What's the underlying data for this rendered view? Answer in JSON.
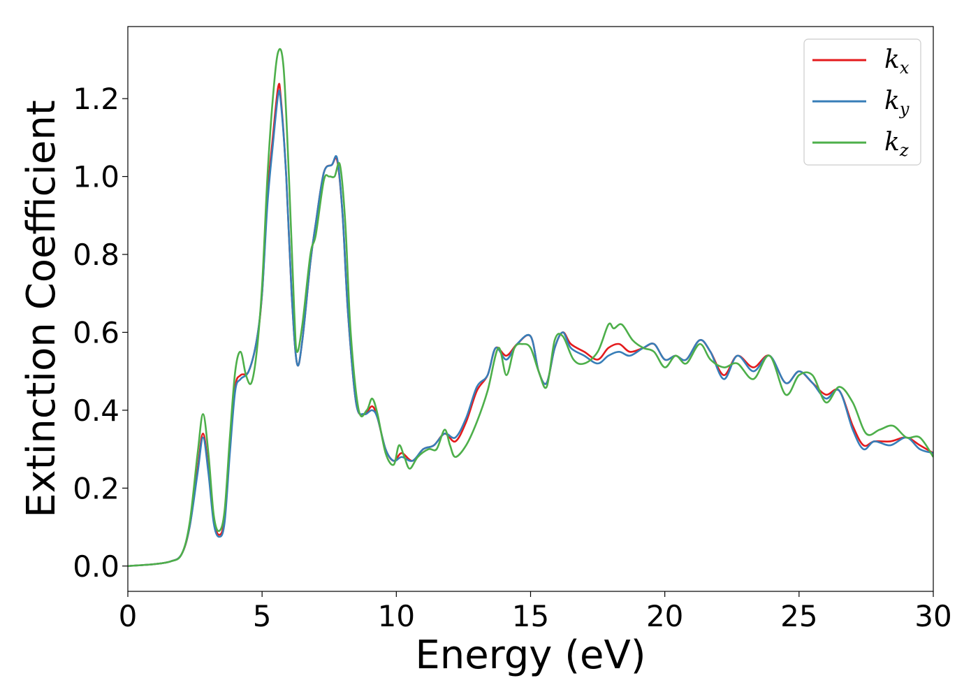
{
  "chart_data": {
    "type": "line",
    "xlabel": "Energy (eV)",
    "ylabel": "Extinction Coefficient",
    "xlim": [
      0,
      30
    ],
    "ylim": [
      -0.065,
      1.385
    ],
    "xticks": [
      0,
      5,
      10,
      15,
      20,
      25,
      30
    ],
    "xtick_labels": [
      "0",
      "5",
      "10",
      "15",
      "20",
      "25",
      "30"
    ],
    "yticks": [
      0.0,
      0.2,
      0.4,
      0.6,
      0.8,
      1.0,
      1.2
    ],
    "ytick_labels": [
      "0.0",
      "0.2",
      "0.4",
      "0.6",
      "0.8",
      "1.0",
      "1.2"
    ],
    "grid": false,
    "legend_position": "top-right",
    "series": [
      {
        "name": "k_x",
        "legend_base": "k",
        "legend_sub": "x",
        "color": "#e41a1c",
        "points": [
          [
            0,
            0
          ],
          [
            1,
            0.005
          ],
          [
            1.6,
            0.012
          ],
          [
            2,
            0.03
          ],
          [
            2.3,
            0.1
          ],
          [
            2.6,
            0.25
          ],
          [
            2.8,
            0.34
          ],
          [
            3.0,
            0.25
          ],
          [
            3.2,
            0.12
          ],
          [
            3.4,
            0.08
          ],
          [
            3.6,
            0.12
          ],
          [
            3.8,
            0.3
          ],
          [
            4.0,
            0.46
          ],
          [
            4.2,
            0.49
          ],
          [
            4.5,
            0.5
          ],
          [
            4.8,
            0.58
          ],
          [
            5.0,
            0.7
          ],
          [
            5.2,
            0.95
          ],
          [
            5.4,
            1.1
          ],
          [
            5.6,
            1.23
          ],
          [
            5.7,
            1.2
          ],
          [
            5.9,
            1.0
          ],
          [
            6.1,
            0.7
          ],
          [
            6.3,
            0.52
          ],
          [
            6.5,
            0.58
          ],
          [
            6.8,
            0.78
          ],
          [
            7.0,
            0.88
          ],
          [
            7.3,
            1.01
          ],
          [
            7.6,
            1.03
          ],
          [
            7.8,
            1.04
          ],
          [
            8.0,
            0.9
          ],
          [
            8.2,
            0.65
          ],
          [
            8.5,
            0.42
          ],
          [
            8.8,
            0.39
          ],
          [
            9.1,
            0.41
          ],
          [
            9.3,
            0.38
          ],
          [
            9.6,
            0.3
          ],
          [
            9.9,
            0.27
          ],
          [
            10.2,
            0.29
          ],
          [
            10.6,
            0.27
          ],
          [
            11.0,
            0.3
          ],
          [
            11.4,
            0.31
          ],
          [
            11.8,
            0.34
          ],
          [
            12.2,
            0.32
          ],
          [
            12.6,
            0.37
          ],
          [
            13.0,
            0.45
          ],
          [
            13.4,
            0.49
          ],
          [
            13.7,
            0.56
          ],
          [
            14.1,
            0.54
          ],
          [
            14.5,
            0.57
          ],
          [
            15.0,
            0.59
          ],
          [
            15.3,
            0.5
          ],
          [
            15.6,
            0.47
          ],
          [
            15.9,
            0.56
          ],
          [
            16.2,
            0.6
          ],
          [
            16.5,
            0.57
          ],
          [
            17.0,
            0.55
          ],
          [
            17.5,
            0.53
          ],
          [
            17.9,
            0.56
          ],
          [
            18.3,
            0.57
          ],
          [
            18.7,
            0.55
          ],
          [
            19.2,
            0.56
          ],
          [
            19.6,
            0.57
          ],
          [
            20.0,
            0.53
          ],
          [
            20.4,
            0.54
          ],
          [
            20.8,
            0.53
          ],
          [
            21.3,
            0.58
          ],
          [
            21.7,
            0.55
          ],
          [
            22.2,
            0.49
          ],
          [
            22.7,
            0.54
          ],
          [
            23.3,
            0.51
          ],
          [
            23.9,
            0.54
          ],
          [
            24.5,
            0.47
          ],
          [
            25.0,
            0.5
          ],
          [
            25.5,
            0.47
          ],
          [
            26.0,
            0.44
          ],
          [
            26.5,
            0.45
          ],
          [
            27.0,
            0.36
          ],
          [
            27.4,
            0.31
          ],
          [
            27.8,
            0.32
          ],
          [
            28.4,
            0.32
          ],
          [
            29.0,
            0.33
          ],
          [
            29.5,
            0.31
          ],
          [
            30.0,
            0.29
          ]
        ]
      },
      {
        "name": "k_y",
        "legend_base": "k",
        "legend_sub": "y",
        "color": "#377eb8",
        "points": [
          [
            0,
            0
          ],
          [
            1,
            0.005
          ],
          [
            1.6,
            0.012
          ],
          [
            2,
            0.03
          ],
          [
            2.3,
            0.1
          ],
          [
            2.6,
            0.24
          ],
          [
            2.8,
            0.33
          ],
          [
            3.0,
            0.24
          ],
          [
            3.2,
            0.11
          ],
          [
            3.4,
            0.075
          ],
          [
            3.6,
            0.11
          ],
          [
            3.8,
            0.29
          ],
          [
            4.0,
            0.45
          ],
          [
            4.2,
            0.48
          ],
          [
            4.5,
            0.5
          ],
          [
            4.8,
            0.58
          ],
          [
            5.0,
            0.7
          ],
          [
            5.2,
            0.93
          ],
          [
            5.4,
            1.08
          ],
          [
            5.6,
            1.21
          ],
          [
            5.7,
            1.19
          ],
          [
            5.9,
            1.0
          ],
          [
            6.1,
            0.7
          ],
          [
            6.3,
            0.52
          ],
          [
            6.5,
            0.58
          ],
          [
            6.8,
            0.78
          ],
          [
            7.0,
            0.88
          ],
          [
            7.3,
            1.01
          ],
          [
            7.6,
            1.03
          ],
          [
            7.8,
            1.045
          ],
          [
            8.0,
            0.9
          ],
          [
            8.2,
            0.65
          ],
          [
            8.5,
            0.42
          ],
          [
            8.8,
            0.39
          ],
          [
            9.1,
            0.4
          ],
          [
            9.3,
            0.38
          ],
          [
            9.6,
            0.3
          ],
          [
            9.9,
            0.27
          ],
          [
            10.2,
            0.28
          ],
          [
            10.6,
            0.27
          ],
          [
            11.0,
            0.3
          ],
          [
            11.4,
            0.31
          ],
          [
            11.8,
            0.34
          ],
          [
            12.2,
            0.33
          ],
          [
            12.6,
            0.38
          ],
          [
            13.0,
            0.46
          ],
          [
            13.4,
            0.49
          ],
          [
            13.7,
            0.56
          ],
          [
            14.1,
            0.53
          ],
          [
            14.5,
            0.57
          ],
          [
            15.0,
            0.59
          ],
          [
            15.3,
            0.5
          ],
          [
            15.6,
            0.47
          ],
          [
            15.9,
            0.56
          ],
          [
            16.2,
            0.6
          ],
          [
            16.5,
            0.56
          ],
          [
            17.0,
            0.54
          ],
          [
            17.5,
            0.52
          ],
          [
            17.9,
            0.54
          ],
          [
            18.3,
            0.55
          ],
          [
            18.7,
            0.54
          ],
          [
            19.2,
            0.56
          ],
          [
            19.6,
            0.57
          ],
          [
            20.0,
            0.53
          ],
          [
            20.4,
            0.54
          ],
          [
            20.8,
            0.53
          ],
          [
            21.3,
            0.58
          ],
          [
            21.7,
            0.55
          ],
          [
            22.2,
            0.48
          ],
          [
            22.7,
            0.54
          ],
          [
            23.3,
            0.5
          ],
          [
            23.9,
            0.54
          ],
          [
            24.5,
            0.47
          ],
          [
            25.0,
            0.5
          ],
          [
            25.5,
            0.47
          ],
          [
            26.0,
            0.43
          ],
          [
            26.5,
            0.45
          ],
          [
            27.0,
            0.35
          ],
          [
            27.4,
            0.3
          ],
          [
            27.8,
            0.32
          ],
          [
            28.4,
            0.31
          ],
          [
            29.0,
            0.33
          ],
          [
            29.5,
            0.3
          ],
          [
            30.0,
            0.29
          ]
        ]
      },
      {
        "name": "k_z",
        "legend_base": "k",
        "legend_sub": "z",
        "color": "#4daf4a",
        "points": [
          [
            0,
            0
          ],
          [
            1,
            0.005
          ],
          [
            1.6,
            0.012
          ],
          [
            2,
            0.03
          ],
          [
            2.3,
            0.11
          ],
          [
            2.6,
            0.29
          ],
          [
            2.8,
            0.39
          ],
          [
            3.0,
            0.29
          ],
          [
            3.2,
            0.13
          ],
          [
            3.4,
            0.09
          ],
          [
            3.6,
            0.14
          ],
          [
            3.8,
            0.33
          ],
          [
            4.0,
            0.5
          ],
          [
            4.2,
            0.55
          ],
          [
            4.4,
            0.49
          ],
          [
            4.6,
            0.47
          ],
          [
            4.8,
            0.55
          ],
          [
            5.0,
            0.72
          ],
          [
            5.2,
            1.0
          ],
          [
            5.4,
            1.2
          ],
          [
            5.6,
            1.32
          ],
          [
            5.8,
            1.28
          ],
          [
            6.0,
            1.0
          ],
          [
            6.2,
            0.65
          ],
          [
            6.3,
            0.55
          ],
          [
            6.5,
            0.62
          ],
          [
            6.8,
            0.8
          ],
          [
            7.0,
            0.85
          ],
          [
            7.3,
            0.99
          ],
          [
            7.5,
            1.0
          ],
          [
            7.7,
            1.0
          ],
          [
            7.9,
            1.03
          ],
          [
            8.1,
            0.88
          ],
          [
            8.3,
            0.6
          ],
          [
            8.6,
            0.4
          ],
          [
            8.9,
            0.4
          ],
          [
            9.1,
            0.43
          ],
          [
            9.3,
            0.39
          ],
          [
            9.6,
            0.29
          ],
          [
            9.9,
            0.26
          ],
          [
            10.1,
            0.31
          ],
          [
            10.3,
            0.28
          ],
          [
            10.5,
            0.25
          ],
          [
            10.8,
            0.28
          ],
          [
            11.2,
            0.3
          ],
          [
            11.5,
            0.3
          ],
          [
            11.8,
            0.35
          ],
          [
            12.0,
            0.31
          ],
          [
            12.2,
            0.28
          ],
          [
            12.6,
            0.31
          ],
          [
            13.0,
            0.37
          ],
          [
            13.4,
            0.45
          ],
          [
            13.8,
            0.56
          ],
          [
            14.1,
            0.49
          ],
          [
            14.4,
            0.56
          ],
          [
            14.7,
            0.57
          ],
          [
            15.0,
            0.56
          ],
          [
            15.3,
            0.5
          ],
          [
            15.6,
            0.46
          ],
          [
            15.9,
            0.58
          ],
          [
            16.2,
            0.59
          ],
          [
            16.6,
            0.53
          ],
          [
            17.0,
            0.52
          ],
          [
            17.5,
            0.55
          ],
          [
            17.9,
            0.62
          ],
          [
            18.1,
            0.61
          ],
          [
            18.4,
            0.62
          ],
          [
            18.8,
            0.58
          ],
          [
            19.2,
            0.56
          ],
          [
            19.6,
            0.55
          ],
          [
            20.0,
            0.51
          ],
          [
            20.4,
            0.54
          ],
          [
            20.8,
            0.52
          ],
          [
            21.3,
            0.57
          ],
          [
            21.7,
            0.53
          ],
          [
            22.2,
            0.51
          ],
          [
            22.7,
            0.52
          ],
          [
            23.3,
            0.48
          ],
          [
            23.9,
            0.54
          ],
          [
            24.5,
            0.44
          ],
          [
            25.0,
            0.49
          ],
          [
            25.5,
            0.49
          ],
          [
            26.0,
            0.42
          ],
          [
            26.5,
            0.46
          ],
          [
            27.0,
            0.42
          ],
          [
            27.5,
            0.34
          ],
          [
            28.0,
            0.35
          ],
          [
            28.5,
            0.36
          ],
          [
            29.0,
            0.33
          ],
          [
            29.5,
            0.33
          ],
          [
            30.0,
            0.28
          ]
        ]
      }
    ]
  }
}
